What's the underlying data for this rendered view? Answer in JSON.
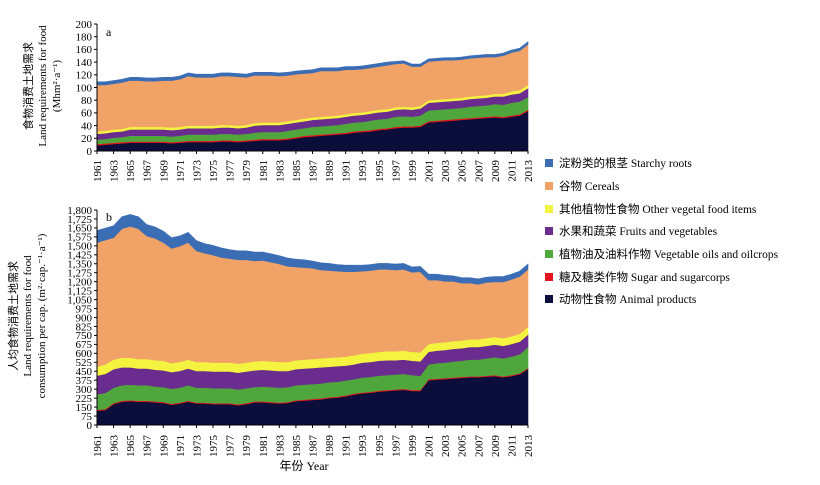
{
  "colors": {
    "animal": "#0b0d3b",
    "sugar": "#e3141b",
    "oil": "#4fa63d",
    "fruit": "#6a2c8e",
    "other": "#f4f340",
    "cereal": "#f0a267",
    "starchy": "#3b6db5"
  },
  "xlabel": "年份 Year",
  "legend": [
    {
      "key": "starchy",
      "label": "淀粉类的根茎 Starchy roots"
    },
    {
      "key": "cereal",
      "label": "谷物 Cereals"
    },
    {
      "key": "other",
      "label": "其他植物性食物 Other vegetal food items"
    },
    {
      "key": "fruit",
      "label": "水果和蔬菜 Fruits and vegetables"
    },
    {
      "key": "oil",
      "label": "植物油及油料作物 Vegetable oils and oilcrops"
    },
    {
      "key": "sugar",
      "label": "糖及糖类作物 Sugar and sugarcorps"
    },
    {
      "key": "animal",
      "label": "动物性食物 Animal products"
    }
  ],
  "chart_data": [
    {
      "type": "area",
      "panel_label": "a",
      "ylabel": [
        "食物消费土地需求",
        "Land requirements for food",
        "(Mhm²·a⁻¹)"
      ],
      "ylim": [
        0,
        200
      ],
      "yticks": [
        0,
        20,
        40,
        60,
        80,
        100,
        120,
        140,
        160,
        180,
        200
      ],
      "x": [
        1961,
        1962,
        1963,
        1964,
        1965,
        1966,
        1967,
        1968,
        1969,
        1970,
        1971,
        1972,
        1973,
        1974,
        1975,
        1976,
        1977,
        1978,
        1979,
        1980,
        1981,
        1982,
        1983,
        1984,
        1985,
        1986,
        1987,
        1988,
        1989,
        1990,
        1991,
        1992,
        1993,
        1994,
        1995,
        1996,
        1997,
        1998,
        1999,
        2000,
        2001,
        2002,
        2003,
        2004,
        2005,
        2006,
        2007,
        2008,
        2009,
        2010,
        2011,
        2012,
        2013
      ],
      "xticks": [
        1961,
        1963,
        1965,
        1967,
        1969,
        1971,
        1973,
        1975,
        1977,
        1979,
        1981,
        1983,
        1985,
        1987,
        1989,
        1991,
        1993,
        1995,
        1997,
        1999,
        2001,
        2003,
        2005,
        2007,
        2009,
        2011,
        2013
      ],
      "stacking": "cumulative",
      "series": [
        {
          "key": "animal",
          "values": [
            9,
            10,
            11,
            12,
            13,
            13,
            13,
            13,
            13,
            12,
            13,
            14,
            14,
            14,
            14,
            15,
            15,
            14,
            15,
            16,
            17,
            17,
            17,
            18,
            20,
            22,
            23,
            24,
            25,
            26,
            27,
            29,
            30,
            31,
            33,
            34,
            36,
            37,
            37,
            38,
            45,
            46,
            47,
            48,
            49,
            50,
            51,
            52,
            53,
            52,
            54,
            56,
            63
          ]
        },
        {
          "key": "sugar",
          "values": [
            2,
            2,
            2,
            2,
            2,
            2,
            2,
            2,
            2,
            2,
            2,
            2,
            2,
            2,
            2,
            2,
            2,
            2,
            2,
            2,
            2,
            2,
            2,
            2,
            2,
            2,
            2,
            2,
            2,
            2,
            2,
            2,
            2,
            2,
            2,
            2,
            2,
            2,
            2,
            2,
            2,
            2,
            2,
            2,
            2,
            2,
            2,
            2,
            2,
            2,
            2,
            2,
            2
          ]
        },
        {
          "key": "oil",
          "values": [
            7,
            7,
            8,
            8,
            9,
            9,
            9,
            9,
            9,
            9,
            9,
            10,
            10,
            10,
            10,
            10,
            10,
            10,
            10,
            11,
            11,
            11,
            11,
            12,
            12,
            12,
            13,
            13,
            13,
            13,
            14,
            14,
            14,
            15,
            15,
            15,
            16,
            16,
            15,
            16,
            17,
            17,
            17,
            17,
            17,
            18,
            18,
            18,
            19,
            19,
            20,
            20,
            20
          ]
        },
        {
          "key": "fruit",
          "values": [
            9,
            9,
            9,
            9,
            10,
            10,
            10,
            10,
            10,
            10,
            10,
            10,
            10,
            10,
            10,
            10,
            10,
            10,
            10,
            11,
            11,
            11,
            11,
            11,
            11,
            11,
            11,
            11,
            11,
            11,
            11,
            11,
            11,
            11,
            11,
            11,
            11,
            11,
            11,
            11,
            12,
            12,
            12,
            12,
            12,
            12,
            12,
            12,
            12,
            13,
            13,
            13,
            14
          ]
        },
        {
          "key": "other",
          "values": [
            4,
            4,
            4,
            4,
            4,
            4,
            4,
            4,
            4,
            4,
            4,
            4,
            4,
            4,
            4,
            4,
            4,
            4,
            4,
            4,
            4,
            4,
            4,
            4,
            4,
            4,
            4,
            4,
            4,
            4,
            4,
            4,
            4,
            4,
            4,
            4,
            4,
            4,
            4,
            4,
            4,
            4,
            4,
            4,
            4,
            4,
            4,
            4,
            4,
            4,
            5,
            5,
            5
          ]
        },
        {
          "key": "cereal",
          "values": [
            73,
            72,
            72,
            73,
            73,
            73,
            72,
            72,
            73,
            74,
            75,
            78,
            76,
            76,
            76,
            77,
            77,
            77,
            75,
            75,
            74,
            74,
            73,
            72,
            72,
            71,
            70,
            72,
            71,
            70,
            70,
            68,
            68,
            68,
            68,
            69,
            68,
            68,
            64,
            62,
            61,
            61,
            61,
            60,
            60,
            60,
            60,
            60,
            58,
            60,
            61,
            62,
            64
          ]
        },
        {
          "key": "starchy",
          "values": [
            5,
            5,
            5,
            5,
            5,
            5,
            5,
            5,
            5,
            5,
            5,
            5,
            5,
            5,
            5,
            5,
            5,
            5,
            5,
            5,
            5,
            5,
            5,
            5,
            5,
            5,
            5,
            5,
            5,
            5,
            5,
            5,
            5,
            5,
            5,
            5,
            4,
            4,
            4,
            4,
            4,
            4,
            4,
            4,
            4,
            4,
            4,
            4,
            4,
            4,
            4,
            4,
            4
          ]
        }
      ]
    },
    {
      "type": "area",
      "panel_label": "b",
      "ylabel": [
        "人均食物消费土地需求",
        "Land requirements for food",
        "consumption per cap. (m²·cap.⁻¹·a⁻¹)"
      ],
      "ylim": [
        0,
        1800
      ],
      "yticks": [
        0,
        75,
        150,
        225,
        300,
        375,
        450,
        525,
        600,
        675,
        750,
        825,
        900,
        975,
        1050,
        1125,
        1200,
        1275,
        1350,
        1425,
        1500,
        1575,
        1650,
        1725,
        1800
      ],
      "x": [
        1961,
        1962,
        1963,
        1964,
        1965,
        1966,
        1967,
        1968,
        1969,
        1970,
        1971,
        1972,
        1973,
        1974,
        1975,
        1976,
        1977,
        1978,
        1979,
        1980,
        1981,
        1982,
        1983,
        1984,
        1985,
        1986,
        1987,
        1988,
        1989,
        1990,
        1991,
        1992,
        1993,
        1994,
        1995,
        1996,
        1997,
        1998,
        1999,
        2000,
        2001,
        2002,
        2003,
        2004,
        2005,
        2006,
        2007,
        2008,
        2009,
        2010,
        2011,
        2012,
        2013
      ],
      "xticks": [
        1961,
        1963,
        1965,
        1967,
        1969,
        1971,
        1973,
        1975,
        1977,
        1979,
        1981,
        1983,
        1985,
        1987,
        1989,
        1991,
        1993,
        1995,
        1997,
        1999,
        2001,
        2003,
        2005,
        2007,
        2009,
        2011,
        2013
      ],
      "stacking": "cumulative",
      "series": [
        {
          "key": "animal",
          "values": [
            120,
            125,
            175,
            195,
            200,
            195,
            195,
            190,
            185,
            170,
            180,
            195,
            180,
            180,
            175,
            175,
            175,
            165,
            175,
            190,
            190,
            185,
            180,
            185,
            200,
            205,
            210,
            215,
            225,
            230,
            240,
            255,
            265,
            270,
            280,
            285,
            290,
            295,
            285,
            285,
            375,
            380,
            385,
            390,
            395,
            400,
            400,
            405,
            410,
            400,
            410,
            425,
            470
          ]
        },
        {
          "key": "sugar",
          "values": [
            8,
            8,
            8,
            8,
            8,
            8,
            8,
            8,
            8,
            8,
            8,
            8,
            8,
            8,
            8,
            8,
            8,
            8,
            8,
            8,
            8,
            8,
            8,
            8,
            8,
            8,
            8,
            8,
            8,
            8,
            8,
            8,
            8,
            8,
            8,
            8,
            8,
            8,
            8,
            8,
            8,
            8,
            8,
            8,
            8,
            8,
            8,
            8,
            8,
            8,
            8,
            8,
            8
          ]
        },
        {
          "key": "oil",
          "values": [
            130,
            135,
            130,
            130,
            130,
            130,
            130,
            125,
            125,
            125,
            125,
            130,
            125,
            125,
            125,
            125,
            125,
            125,
            125,
            120,
            125,
            125,
            125,
            125,
            125,
            125,
            125,
            125,
            125,
            125,
            125,
            120,
            125,
            125,
            125,
            125,
            125,
            125,
            125,
            120,
            125,
            130,
            130,
            135,
            135,
            140,
            140,
            145,
            150,
            150,
            155,
            160,
            175
          ]
        },
        {
          "key": "fruit",
          "values": [
            155,
            160,
            155,
            150,
            145,
            140,
            140,
            140,
            140,
            140,
            140,
            140,
            140,
            140,
            140,
            140,
            140,
            140,
            140,
            140,
            140,
            140,
            140,
            135,
            135,
            135,
            135,
            135,
            130,
            130,
            125,
            125,
            125,
            125,
            125,
            125,
            120,
            120,
            120,
            120,
            105,
            105,
            105,
            105,
            105,
            105,
            105,
            105,
            105,
            105,
            105,
            105,
            105
          ]
        },
        {
          "key": "other",
          "values": [
            75,
            80,
            80,
            80,
            80,
            80,
            80,
            80,
            80,
            75,
            75,
            75,
            75,
            75,
            75,
            75,
            75,
            75,
            75,
            75,
            75,
            75,
            75,
            75,
            75,
            75,
            75,
            75,
            75,
            75,
            75,
            75,
            75,
            75,
            75,
            75,
            75,
            75,
            75,
            75,
            65,
            65,
            65,
            65,
            65,
            65,
            65,
            65,
            65,
            65,
            65,
            65,
            65
          ]
        },
        {
          "key": "cereal",
          "values": [
            1040,
            1040,
            1020,
            1080,
            1100,
            1090,
            1030,
            1020,
            990,
            960,
            970,
            980,
            930,
            910,
            900,
            880,
            870,
            870,
            860,
            840,
            840,
            830,
            820,
            800,
            780,
            770,
            760,
            740,
            730,
            720,
            710,
            700,
            690,
            690,
            690,
            685,
            680,
            680,
            665,
            675,
            535,
            525,
            510,
            500,
            480,
            470,
            460,
            465,
            460,
            470,
            475,
            480,
            480
          ]
        },
        {
          "key": "starchy",
          "values": [
            100,
            100,
            100,
            100,
            100,
            100,
            95,
            95,
            95,
            90,
            85,
            85,
            85,
            80,
            80,
            80,
            75,
            75,
            75,
            75,
            70,
            70,
            70,
            70,
            65,
            65,
            60,
            60,
            60,
            55,
            55,
            55,
            50,
            50,
            50,
            50,
            50,
            50,
            45,
            45,
            50,
            50,
            50,
            45,
            45,
            45,
            45,
            45,
            45,
            45,
            45,
            45,
            45
          ]
        }
      ]
    }
  ]
}
